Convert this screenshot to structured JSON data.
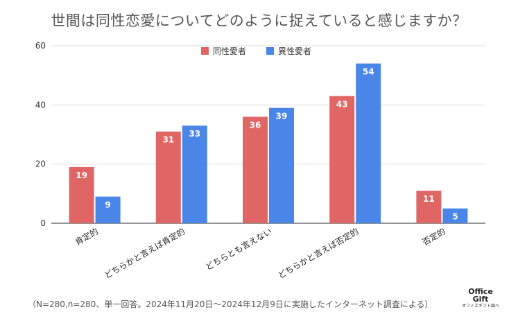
{
  "title": "世間は同性恋愛についてどのように捉えていると感じますか？",
  "footnote": "（N=280,n=280、単一回答。2024年11月20日〜2024年12月9日に実施したインターネット調査による）",
  "logo": {
    "line1": "Office",
    "line2": "Gift",
    "line3": "オフィスギフト調べ"
  },
  "colors": {
    "series1": "#e06666",
    "series2": "#4a86e8"
  },
  "chart_data": {
    "type": "bar",
    "title": "世間は同性恋愛についてどのように捉えていると感じますか？",
    "categories": [
      "肯定的",
      "どちらかと言えば肯定的",
      "どちらとも言えない",
      "どちらかと言えば否定的",
      "否定的"
    ],
    "series": [
      {
        "name": "同性愛者",
        "values": [
          19,
          31,
          36,
          43,
          11
        ]
      },
      {
        "name": "異性愛者",
        "values": [
          9,
          33,
          39,
          54,
          5
        ]
      }
    ],
    "yticks": [
      0,
      20,
      40,
      60
    ],
    "ylim": [
      0,
      60
    ],
    "xlabel": "",
    "ylabel": "",
    "grid": true,
    "legend": "top-center"
  }
}
